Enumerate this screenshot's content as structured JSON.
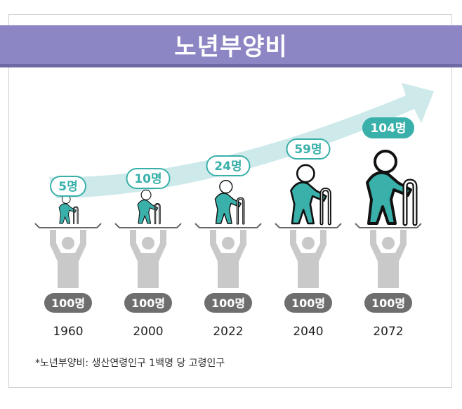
{
  "header": {
    "title": "노년부양비"
  },
  "footnote": "*노년부양비: 생산연령인구 1백명 당 고령인구",
  "colors": {
    "banner": "#8d86c4",
    "accent": "#3ab0aa",
    "accent_light": "#cde9ea",
    "worker": "#c9c9c9",
    "badge_gray": "#6e6e6e"
  },
  "chart_data": {
    "type": "pictograph",
    "categories": [
      "1960",
      "2000",
      "2022",
      "2040",
      "2072"
    ],
    "series": [
      {
        "name": "고령인구",
        "values": [
          5,
          10,
          24,
          59,
          104
        ],
        "labels": [
          "5명",
          "10명",
          "24명",
          "59명",
          "104명"
        ]
      },
      {
        "name": "생산연령인구",
        "values": [
          100,
          100,
          100,
          100,
          100
        ],
        "labels": [
          "100명",
          "100명",
          "100명",
          "100명",
          "100명"
        ]
      }
    ]
  }
}
